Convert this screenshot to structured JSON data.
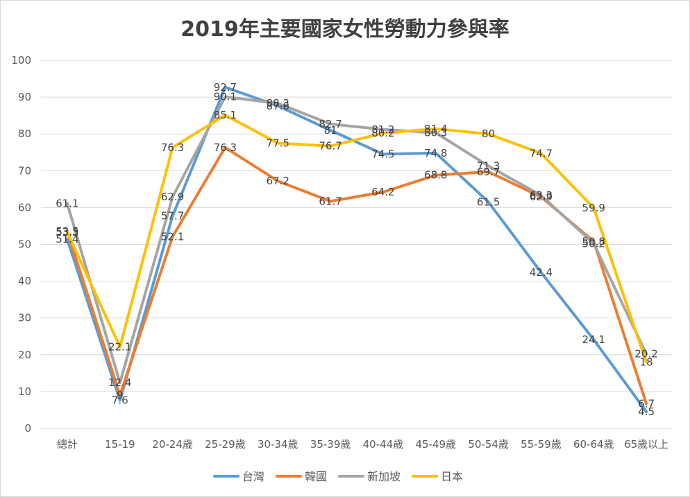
{
  "chart_data": {
    "type": "line",
    "title": "2019年主要國家女性勞動力參與率",
    "categories": [
      "總計",
      "15-19",
      "20-24歲",
      "25-29歲",
      "30-34歲",
      "35-39歲",
      "40-44歲",
      "45-49歲",
      "50-54歲",
      "55-59歲",
      "60-64歲",
      "65歲以上"
    ],
    "ylim": [
      0,
      100
    ],
    "yticks": [
      0,
      10,
      20,
      30,
      40,
      50,
      60,
      70,
      80,
      90,
      100
    ],
    "grid": true,
    "legend_position": "bottom",
    "series": [
      {
        "name": "台灣",
        "color": "#5b9bd5",
        "values": [
          51.4,
          7.6,
          57.7,
          92.7,
          87.6,
          81,
          74.5,
          74.8,
          61.5,
          42.4,
          24.1,
          4.5
        ]
      },
      {
        "name": "韓國",
        "color": "#ed7d31",
        "values": [
          53.5,
          9,
          52.1,
          76.3,
          67.2,
          61.7,
          64.2,
          68.8,
          69.7,
          62.9,
          50.8,
          6.7
        ]
      },
      {
        "name": "新加坡",
        "color": "#a5a5a5",
        "values": [
          61.1,
          12.4,
          62.9,
          90.1,
          88.3,
          82.7,
          81.2,
          80.3,
          71.3,
          63.3,
          50.2,
          20.2
        ]
      },
      {
        "name": "日本",
        "color": "#ffc000",
        "values": [
          53.3,
          22.1,
          76.3,
          85.1,
          77.5,
          76.7,
          80.2,
          81.4,
          80,
          74.7,
          59.9,
          18
        ]
      }
    ]
  }
}
